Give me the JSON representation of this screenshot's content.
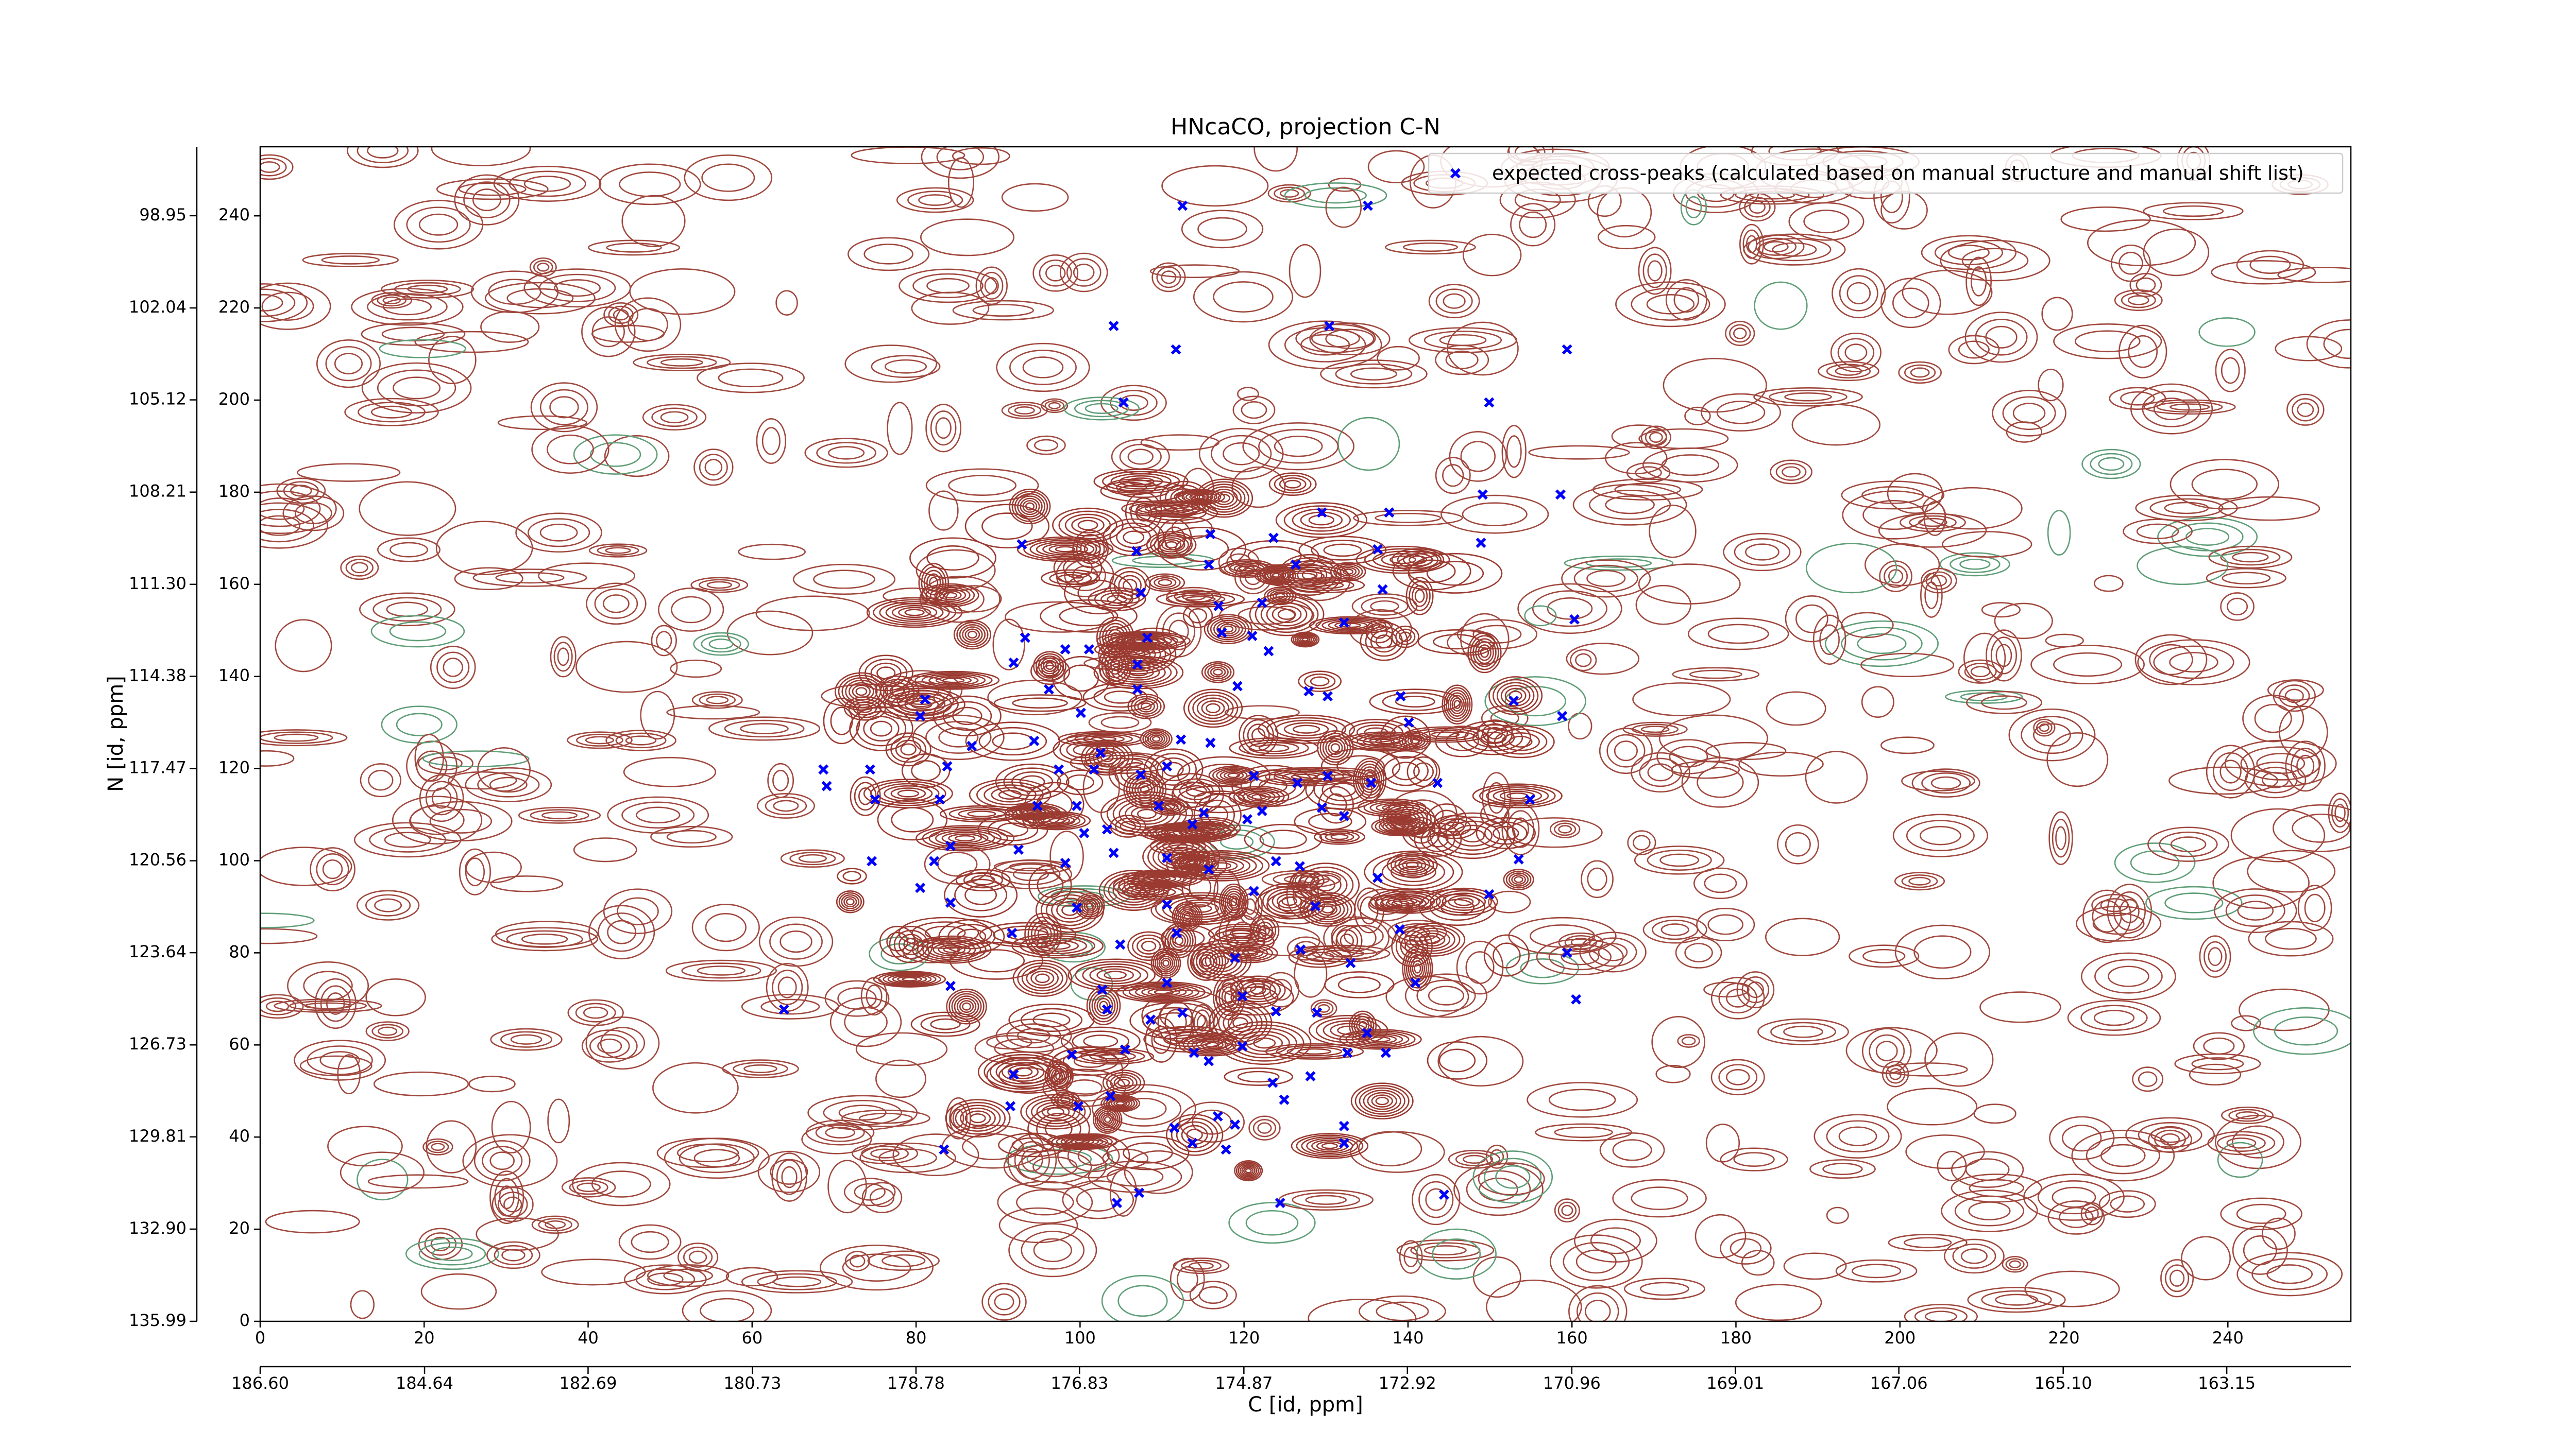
{
  "chart_data": {
    "type": "scatter",
    "title": "HNcaCO, projection C-N",
    "xlabel": "C [id, ppm]",
    "ylabel": "N [id, ppm]",
    "xlim": [
      0,
      255
    ],
    "ylim": [
      0,
      255
    ],
    "xticks": [
      0,
      20,
      40,
      60,
      80,
      100,
      120,
      140,
      160,
      180,
      200,
      220,
      240
    ],
    "yticks": [
      0,
      20,
      40,
      60,
      80,
      100,
      120,
      140,
      160,
      180,
      200,
      220,
      240
    ],
    "x2lim": [
      186.6,
      161.67
    ],
    "x2ticks": [
      {
        "value": 186.6,
        "label": "186.60"
      },
      {
        "value": 184.64,
        "label": "184.64"
      },
      {
        "value": 182.69,
        "label": "182.69"
      },
      {
        "value": 180.73,
        "label": "180.73"
      },
      {
        "value": 178.78,
        "label": "178.78"
      },
      {
        "value": 176.83,
        "label": "176.83"
      },
      {
        "value": 174.87,
        "label": "174.87"
      },
      {
        "value": 172.92,
        "label": "172.92"
      },
      {
        "value": 170.96,
        "label": "170.96"
      },
      {
        "value": 169.01,
        "label": "169.01"
      },
      {
        "value": 167.06,
        "label": "167.06"
      },
      {
        "value": 165.1,
        "label": "165.10"
      },
      {
        "value": 163.15,
        "label": "163.15"
      }
    ],
    "y2lim": [
      135.99,
      96.64
    ],
    "y2ticks": [
      {
        "value": 135.99,
        "label": "135.99"
      },
      {
        "value": 132.9,
        "label": "132.90"
      },
      {
        "value": 129.81,
        "label": "129.81"
      },
      {
        "value": 126.73,
        "label": "126.73"
      },
      {
        "value": 123.64,
        "label": "123.64"
      },
      {
        "value": 120.56,
        "label": "120.56"
      },
      {
        "value": 117.47,
        "label": "117.47"
      },
      {
        "value": 114.38,
        "label": "114.38"
      },
      {
        "value": 111.3,
        "label": "111.30"
      },
      {
        "value": 108.21,
        "label": "108.21"
      },
      {
        "value": 105.12,
        "label": "105.12"
      },
      {
        "value": 102.04,
        "label": "102.04"
      },
      {
        "value": 98.95,
        "label": "98.95"
      }
    ],
    "legend": "upper right",
    "series": [
      {
        "name": "expected cross-peaks (calculated based on manual structure and manual shift list)",
        "color": "#0000ff",
        "x": [
          112.5,
          135.1,
          104.1,
          111.7,
          130.4,
          159.4,
          105.3,
          149.9,
          149.1,
          158.6,
          115.9,
          123.6,
          129.5,
          137.7,
          148.9,
          92.9,
          106.9,
          115.7,
          126.3,
          136.3,
          107.4,
          136.9,
          160.3,
          116.9,
          122.2,
          108.2,
          117.3,
          121.0,
          93.3,
          132.2,
          123.0,
          91.9,
          98.2,
          101.1,
          107.0,
          119.2,
          96.2,
          127.9,
          130.2,
          139.1,
          81.1,
          80.5,
          100.1,
          107.0,
          140.1,
          158.8,
          152.9,
          112.3,
          115.9,
          102.5,
          97.4,
          101.7,
          74.4,
          68.7,
          69.1,
          83.8,
          86.8,
          107.4,
          121.2,
          126.5,
          130.2,
          135.5,
          143.6,
          75.0,
          82.9,
          94.8,
          99.6,
          109.6,
          115.1,
          122.2,
          129.5,
          154.9,
          103.3,
          113.7,
          120.4,
          132.2,
          74.6,
          82.2,
          84.2,
          92.5,
          98.2,
          104.1,
          110.6,
          115.7,
          123.9,
          126.8,
          136.3,
          153.5,
          80.5,
          84.2,
          149.9,
          99.6,
          110.6,
          121.2,
          128.7,
          139.0,
          91.7,
          104.9,
          111.8,
          118.9,
          126.9,
          133.0,
          159.4,
          84.2,
          102.7,
          110.6,
          119.8,
          140.9,
          160.5,
          63.9,
          103.3,
          108.6,
          112.5,
          123.9,
          128.9,
          135.0,
          99.0,
          105.5,
          113.9,
          119.8,
          132.6,
          137.3,
          91.9,
          115.7,
          123.5,
          128.1,
          91.5,
          99.8,
          103.7,
          124.9,
          111.5,
          113.7,
          117.8,
          118.9,
          132.2,
          132.2,
          83.4,
          104.5,
          107.2,
          124.4,
          144.4,
          116.8,
          100.5,
          94.4,
          110.6
        ],
        "y": [
          242.2,
          242.2,
          216.1,
          211.0,
          216.1,
          211.0,
          199.5,
          199.5,
          179.5,
          179.5,
          170.9,
          170.1,
          175.6,
          175.6,
          169.0,
          168.7,
          167.2,
          164.3,
          164.3,
          167.6,
          158.2,
          158.9,
          152.4,
          155.3,
          156.0,
          148.4,
          149.5,
          148.8,
          148.4,
          151.7,
          145.5,
          143.0,
          145.9,
          145.9,
          142.6,
          137.9,
          137.2,
          136.8,
          135.7,
          135.7,
          135.0,
          131.4,
          132.1,
          137.2,
          130.0,
          131.4,
          134.7,
          126.3,
          125.6,
          123.4,
          119.8,
          119.8,
          119.8,
          119.8,
          116.2,
          120.5,
          124.9,
          118.7,
          118.4,
          116.9,
          118.4,
          116.9,
          116.9,
          113.3,
          113.3,
          111.9,
          111.9,
          111.9,
          110.4,
          110.8,
          111.5,
          113.3,
          106.8,
          107.9,
          109.0,
          109.7,
          99.9,
          99.9,
          103.2,
          102.4,
          99.5,
          101.7,
          100.6,
          98.1,
          99.9,
          98.8,
          96.3,
          100.3,
          94.1,
          90.9,
          92.7,
          89.8,
          90.5,
          93.4,
          90.1,
          85.1,
          84.3,
          81.8,
          84.3,
          78.9,
          80.7,
          77.8,
          80.0,
          72.8,
          72.0,
          73.5,
          70.6,
          73.5,
          69.9,
          67.7,
          67.7,
          65.5,
          67.0,
          67.3,
          67.0,
          62.6,
          57.9,
          59.0,
          58.3,
          59.7,
          58.3,
          58.3,
          53.6,
          56.5,
          51.8,
          53.2,
          46.7,
          46.7,
          48.9,
          48.1,
          42.0,
          38.7,
          37.3,
          42.7,
          42.4,
          38.7,
          37.3,
          25.7,
          27.9,
          25.7,
          27.5,
          44.5,
          106.0,
          126.0,
          120.5
        ]
      }
    ]
  }
}
